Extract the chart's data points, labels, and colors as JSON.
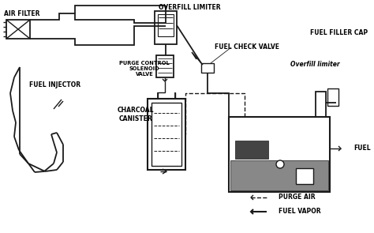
{
  "bg_color": "#ffffff",
  "line_color": "#1a1a1a",
  "labels": {
    "air_filter": "AIR FILTER",
    "fuel_injector": "FUEL INJECTOR",
    "overfill_limiter_top": "OVERFILL LIMITER",
    "purge_control": "PURGE CONTROL\nSOLENOID\nVALVE",
    "charcoal_canister": "CHARCOAL\nCANISTER",
    "fuel_check_valve": "FUEL CHECK VALVE",
    "fuel_filler_cap": "FUEL FILLER CAP",
    "overfill_limiter2": "Overfill limiter",
    "fuel": "FUEL",
    "purge_air": "PURGE AIR",
    "fuel_vapor": "FUEL VAPOR"
  },
  "figw": 4.74,
  "figh": 2.95,
  "dpi": 100
}
